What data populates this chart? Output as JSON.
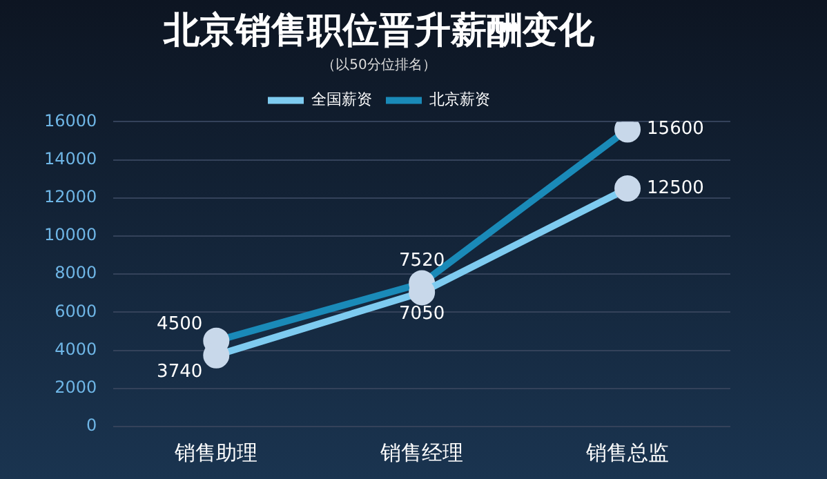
{
  "chart_data": {
    "type": "line",
    "title": "北京销售职位晋升薪酬变化",
    "subtitle": "（以50分位排名）",
    "categories": [
      "销售助理",
      "销售经理",
      "销售总监"
    ],
    "series": [
      {
        "name": "全国薪资",
        "color": "#7ecbf0",
        "values": [
          3740,
          7050,
          12500
        ]
      },
      {
        "name": "北京薪资",
        "color": "#1a8ab8",
        "values": [
          4500,
          7520,
          15600
        ]
      }
    ],
    "ylim": [
      0,
      16000
    ],
    "yticks": [
      0,
      2000,
      4000,
      6000,
      8000,
      10000,
      12000,
      14000,
      16000
    ],
    "grid": "y",
    "legend": "top",
    "marker": "circle",
    "line_style": "solid",
    "data_labels": true
  }
}
